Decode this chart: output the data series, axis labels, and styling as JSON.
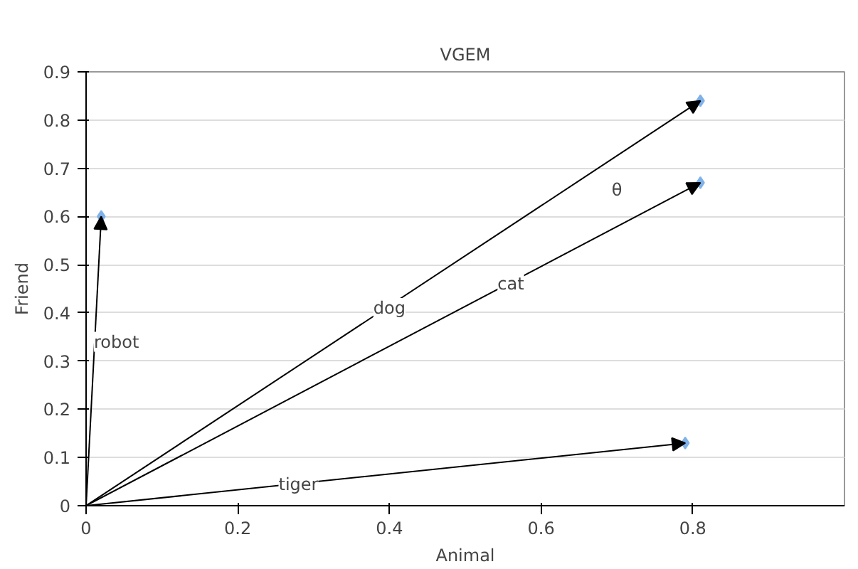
{
  "chart_data": {
    "type": "scatter",
    "title": "VGEM",
    "xlabel": "Animal",
    "ylabel": "Friend",
    "x": [
      0.02,
      0.81,
      0.81,
      0.79
    ],
    "series": [
      {
        "color": "#7fb2ea",
        "values": [
          0.6,
          0.84,
          0.67,
          0.13
        ]
      }
    ],
    "marker": "diamond",
    "grid": "y",
    "xlim": [
      0,
      1
    ],
    "xticks": [
      0,
      0.2,
      0.4,
      0.6,
      0.8
    ],
    "ylim": [
      0,
      0.9
    ],
    "yticks": [
      0,
      0.1,
      0.2,
      0.3,
      0.4,
      0.5,
      0.6,
      0.7,
      0.8,
      0.9
    ],
    "annotations": [
      {
        "text": "robot",
        "x": 0.04,
        "y": 0.34
      },
      {
        "text": "dog",
        "x": 0.4,
        "y": 0.41
      },
      {
        "text": "cat",
        "x": 0.56,
        "y": 0.46
      },
      {
        "text": "tiger",
        "x": 0.28,
        "y": 0.045
      },
      {
        "text": "θ",
        "x": 0.7,
        "y": 0.655
      }
    ]
  }
}
